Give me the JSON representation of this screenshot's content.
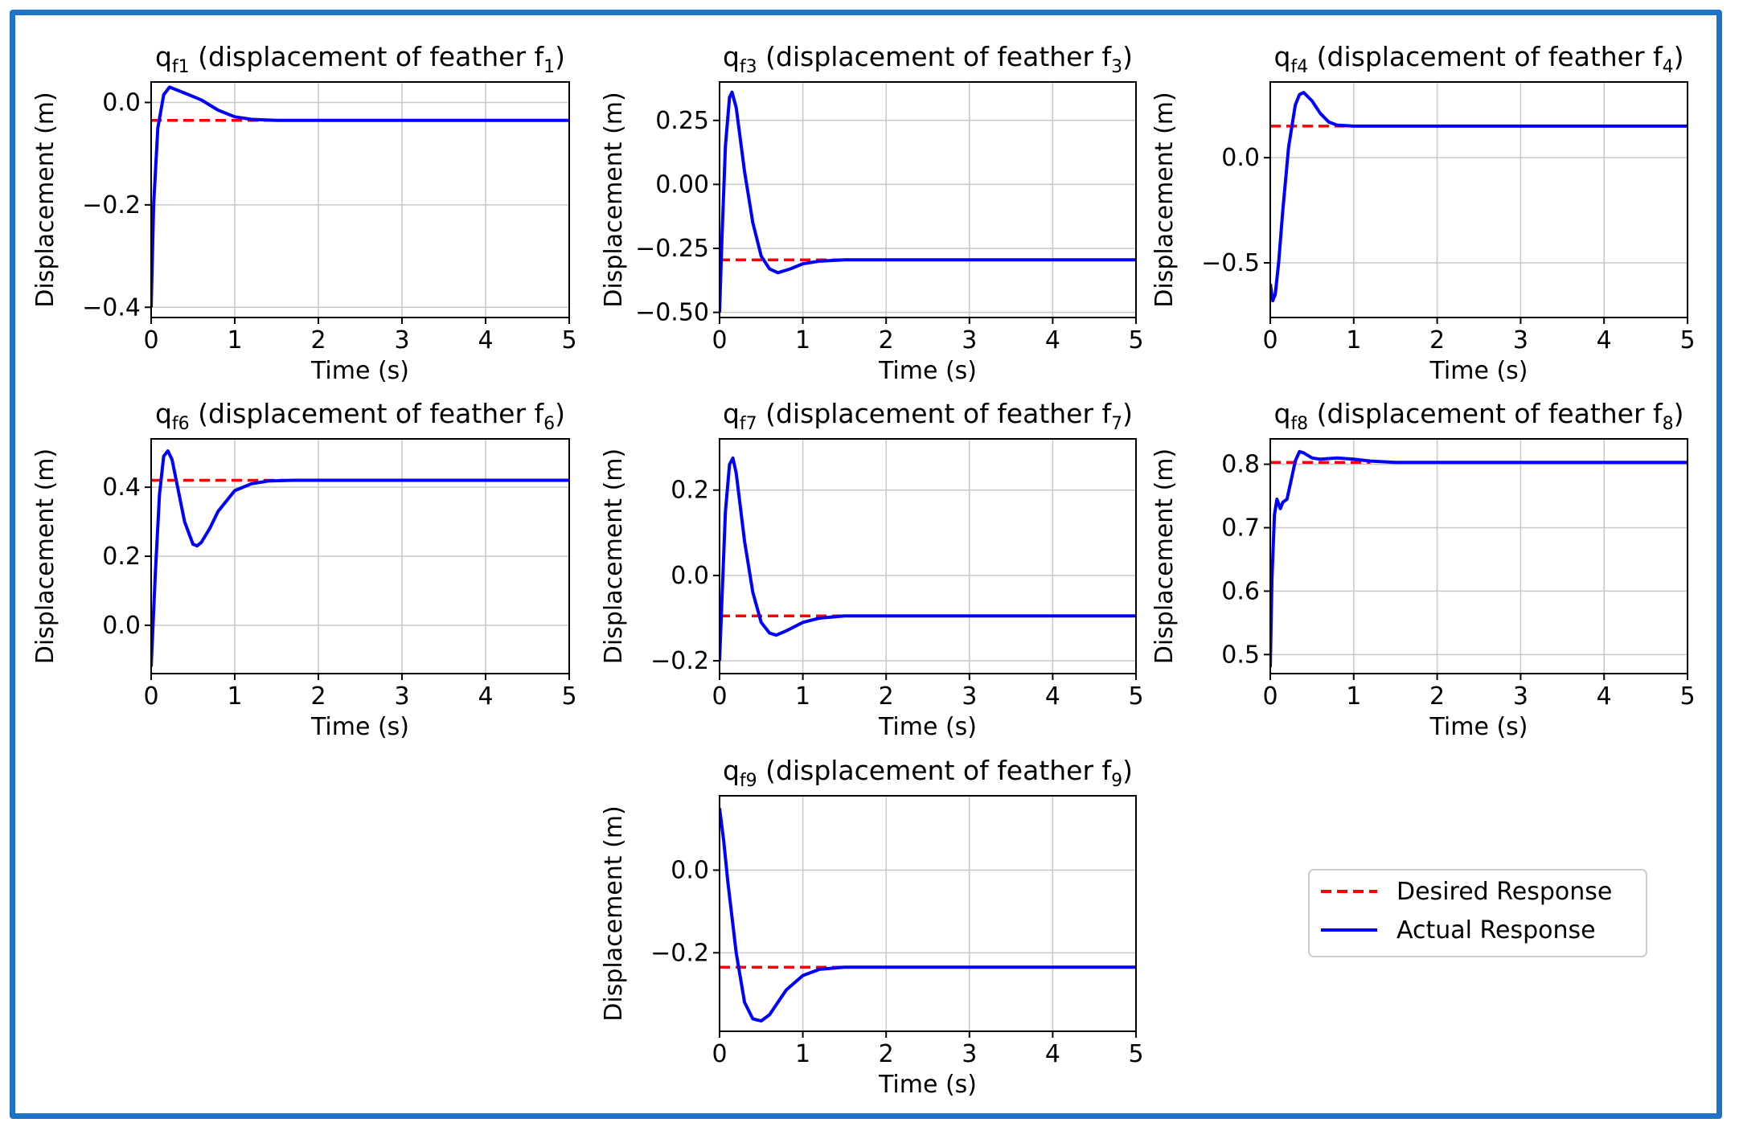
{
  "figure": {
    "frame_color": "#1f73c6",
    "desired_color": "#ff0000",
    "actual_color": "#0000ff",
    "grid_color": "#c8c8c8"
  },
  "legend": {
    "desired_label": "Desired Response",
    "actual_label": "Actual Response"
  },
  "chart_data": [
    {
      "type": "line",
      "title_main": "q",
      "title_sub": "f1",
      "title_rest": " (displacement of feather f",
      "title_sub2": "1",
      "title_end": ")",
      "xlabel": "Time (s)",
      "ylabel": "Displacement (m)",
      "xlim": [
        0,
        5
      ],
      "ylim": [
        -0.42,
        0.04
      ],
      "xticks": [
        0,
        1,
        2,
        3,
        4,
        5
      ],
      "yticks": [
        0.0,
        -0.2,
        -0.4
      ],
      "ytick_labels": [
        "0.0",
        "−0.2",
        "−0.4"
      ],
      "grid": true,
      "series": [
        {
          "name": "Desired Response",
          "style": "dashed",
          "x": [
            0,
            1.5
          ],
          "y": [
            -0.035,
            -0.035
          ]
        },
        {
          "name": "Actual Response",
          "style": "solid",
          "x": [
            0,
            0.03,
            0.08,
            0.15,
            0.22,
            0.3,
            0.45,
            0.6,
            0.8,
            1.0,
            1.2,
            1.5,
            2.0,
            5.0
          ],
          "y": [
            -0.4,
            -0.2,
            -0.05,
            0.015,
            0.03,
            0.025,
            0.015,
            0.005,
            -0.015,
            -0.028,
            -0.033,
            -0.035,
            -0.035,
            -0.035
          ]
        }
      ]
    },
    {
      "type": "line",
      "title_main": "q",
      "title_sub": "f3",
      "title_rest": " (displacement of feather f",
      "title_sub2": "3",
      "title_end": ")",
      "xlabel": "Time (s)",
      "ylabel": "Displacement (m)",
      "xlim": [
        0,
        5
      ],
      "ylim": [
        -0.52,
        0.4
      ],
      "xticks": [
        0,
        1,
        2,
        3,
        4,
        5
      ],
      "yticks": [
        0.25,
        0.0,
        -0.25,
        -0.5
      ],
      "ytick_labels": [
        "0.25",
        "0.00",
        "−0.25",
        "−0.50"
      ],
      "grid": true,
      "series": [
        {
          "name": "Desired Response",
          "style": "dashed",
          "x": [
            0,
            1.5
          ],
          "y": [
            -0.295,
            -0.295
          ]
        },
        {
          "name": "Actual Response",
          "style": "solid",
          "x": [
            0,
            0.03,
            0.07,
            0.12,
            0.15,
            0.2,
            0.3,
            0.4,
            0.5,
            0.6,
            0.7,
            0.85,
            1.0,
            1.2,
            1.5,
            2.0,
            5.0
          ],
          "y": [
            -0.5,
            -0.2,
            0.15,
            0.34,
            0.36,
            0.3,
            0.05,
            -0.15,
            -0.28,
            -0.33,
            -0.345,
            -0.33,
            -0.31,
            -0.3,
            -0.295,
            -0.295,
            -0.295
          ]
        }
      ]
    },
    {
      "type": "line",
      "title_main": "q",
      "title_sub": "f4",
      "title_rest": " (displacement of feather f",
      "title_sub2": "4",
      "title_end": ")",
      "xlabel": "Time (s)",
      "ylabel": "Displacement (m)",
      "xlim": [
        0,
        5
      ],
      "ylim": [
        -0.76,
        0.36
      ],
      "xticks": [
        0,
        1,
        2,
        3,
        4,
        5
      ],
      "yticks": [
        0.0,
        -0.5
      ],
      "ytick_labels": [
        "0.0",
        "−0.5"
      ],
      "grid": true,
      "series": [
        {
          "name": "Desired Response",
          "style": "dashed",
          "x": [
            0,
            1.0
          ],
          "y": [
            0.15,
            0.15
          ]
        },
        {
          "name": "Actual Response",
          "style": "solid",
          "x": [
            0,
            0.03,
            0.06,
            0.1,
            0.15,
            0.22,
            0.3,
            0.35,
            0.4,
            0.5,
            0.6,
            0.7,
            0.8,
            1.0,
            1.3,
            5.0
          ],
          "y": [
            -0.6,
            -0.68,
            -0.65,
            -0.5,
            -0.25,
            0.05,
            0.25,
            0.3,
            0.31,
            0.27,
            0.21,
            0.17,
            0.155,
            0.15,
            0.15,
            0.15
          ]
        }
      ]
    },
    {
      "type": "line",
      "title_main": "q",
      "title_sub": "f6",
      "title_rest": " (displacement of feather f",
      "title_sub2": "6",
      "title_end": ")",
      "xlabel": "Time (s)",
      "ylabel": "Displacement (m)",
      "xlim": [
        0,
        5
      ],
      "ylim": [
        -0.14,
        0.54
      ],
      "xticks": [
        0,
        1,
        2,
        3,
        4,
        5
      ],
      "yticks": [
        0.4,
        0.2,
        0.0
      ],
      "ytick_labels": [
        "0.4",
        "0.2",
        "0.0"
      ],
      "grid": true,
      "series": [
        {
          "name": "Desired Response",
          "style": "dashed",
          "x": [
            0,
            1.6
          ],
          "y": [
            0.42,
            0.42
          ]
        },
        {
          "name": "Actual Response",
          "style": "solid",
          "x": [
            0,
            0.05,
            0.1,
            0.15,
            0.2,
            0.25,
            0.3,
            0.4,
            0.5,
            0.55,
            0.6,
            0.7,
            0.8,
            1.0,
            1.2,
            1.4,
            1.7,
            2.0,
            5.0
          ],
          "y": [
            -0.12,
            0.15,
            0.38,
            0.49,
            0.505,
            0.48,
            0.42,
            0.3,
            0.235,
            0.23,
            0.24,
            0.28,
            0.33,
            0.39,
            0.41,
            0.418,
            0.42,
            0.42,
            0.42
          ]
        }
      ]
    },
    {
      "type": "line",
      "title_main": "q",
      "title_sub": "f7",
      "title_rest": " (displacement of feather f",
      "title_sub2": "7",
      "title_end": ")",
      "xlabel": "Time (s)",
      "ylabel": "Displacement (m)",
      "xlim": [
        0,
        5
      ],
      "ylim": [
        -0.23,
        0.32
      ],
      "xticks": [
        0,
        1,
        2,
        3,
        4,
        5
      ],
      "yticks": [
        0.2,
        0.0,
        -0.2
      ],
      "ytick_labels": [
        "0.2",
        "0.0",
        "−0.2"
      ],
      "grid": true,
      "series": [
        {
          "name": "Desired Response",
          "style": "dashed",
          "x": [
            0,
            1.5
          ],
          "y": [
            -0.095,
            -0.095
          ]
        },
        {
          "name": "Actual Response",
          "style": "solid",
          "x": [
            0,
            0.03,
            0.07,
            0.12,
            0.16,
            0.2,
            0.3,
            0.4,
            0.5,
            0.6,
            0.68,
            0.8,
            1.0,
            1.2,
            1.5,
            2.0,
            5.0
          ],
          "y": [
            -0.2,
            -0.05,
            0.15,
            0.26,
            0.275,
            0.24,
            0.08,
            -0.04,
            -0.11,
            -0.135,
            -0.14,
            -0.13,
            -0.11,
            -0.1,
            -0.095,
            -0.095,
            -0.095
          ]
        }
      ]
    },
    {
      "type": "line",
      "title_main": "q",
      "title_sub": "f8",
      "title_rest": " (displacement of feather f",
      "title_sub2": "8",
      "title_end": ")",
      "xlabel": "Time (s)",
      "ylabel": "Displacement (m)",
      "xlim": [
        0,
        5
      ],
      "ylim": [
        0.47,
        0.84
      ],
      "xticks": [
        0,
        1,
        2,
        3,
        4,
        5
      ],
      "yticks": [
        0.8,
        0.7,
        0.6,
        0.5
      ],
      "ytick_labels": [
        "0.8",
        "0.7",
        "0.6",
        "0.5"
      ],
      "grid": true,
      "series": [
        {
          "name": "Desired Response",
          "style": "dashed",
          "x": [
            0,
            1.2
          ],
          "y": [
            0.803,
            0.803
          ]
        },
        {
          "name": "Actual Response",
          "style": "solid",
          "x": [
            0,
            0.02,
            0.05,
            0.08,
            0.12,
            0.15,
            0.2,
            0.25,
            0.3,
            0.35,
            0.4,
            0.5,
            0.6,
            0.8,
            1.0,
            1.2,
            1.5,
            2.0,
            5.0
          ],
          "y": [
            0.48,
            0.62,
            0.72,
            0.745,
            0.73,
            0.74,
            0.745,
            0.775,
            0.805,
            0.82,
            0.818,
            0.81,
            0.808,
            0.81,
            0.808,
            0.805,
            0.803,
            0.803,
            0.803
          ]
        }
      ]
    },
    {
      "type": "line",
      "title_main": "q",
      "title_sub": "f9",
      "title_rest": " (displacement of feather f",
      "title_sub2": "9",
      "title_end": ")",
      "xlabel": "Time (s)",
      "ylabel": "Displacement (m)",
      "xlim": [
        0,
        5
      ],
      "ylim": [
        -0.39,
        0.18
      ],
      "xticks": [
        0,
        1,
        2,
        3,
        4,
        5
      ],
      "yticks": [
        0.0,
        -0.2
      ],
      "ytick_labels": [
        "0.0",
        "−0.2"
      ],
      "grid": true,
      "series": [
        {
          "name": "Desired Response",
          "style": "dashed",
          "x": [
            0,
            1.5
          ],
          "y": [
            -0.235,
            -0.235
          ]
        },
        {
          "name": "Actual Response",
          "style": "solid",
          "x": [
            0,
            0.05,
            0.1,
            0.2,
            0.3,
            0.4,
            0.5,
            0.6,
            0.7,
            0.8,
            1.0,
            1.2,
            1.5,
            2.0,
            5.0
          ],
          "y": [
            0.15,
            0.07,
            -0.03,
            -0.2,
            -0.32,
            -0.36,
            -0.365,
            -0.35,
            -0.32,
            -0.29,
            -0.255,
            -0.24,
            -0.235,
            -0.235,
            -0.235
          ]
        }
      ]
    }
  ]
}
